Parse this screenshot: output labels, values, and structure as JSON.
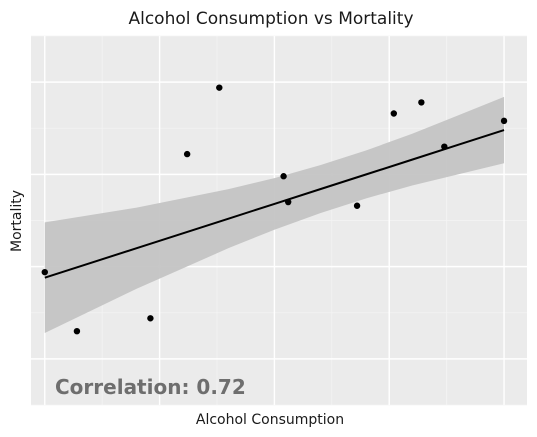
{
  "chart_data": {
    "type": "scatter",
    "title": "Alcohol Consumption vs Mortality",
    "xlabel": "Alcohol Consumption",
    "ylabel": "Mortality",
    "xlim": [
      -0.3,
      10.5
    ],
    "ylim": [
      0,
      10
    ],
    "grid": true,
    "tick_labels_visible": false,
    "points": [
      {
        "x": 0.0,
        "y": 3.6
      },
      {
        "x": 0.7,
        "y": 2.0
      },
      {
        "x": 2.3,
        "y": 2.35
      },
      {
        "x": 3.1,
        "y": 6.8
      },
      {
        "x": 3.8,
        "y": 8.6
      },
      {
        "x": 5.2,
        "y": 6.2
      },
      {
        "x": 5.3,
        "y": 5.5
      },
      {
        "x": 6.8,
        "y": 5.4
      },
      {
        "x": 7.6,
        "y": 7.9
      },
      {
        "x": 8.2,
        "y": 8.2
      },
      {
        "x": 8.7,
        "y": 7.0
      },
      {
        "x": 10.0,
        "y": 7.7
      }
    ],
    "regression": {
      "x": [
        0.0,
        1.0,
        2.0,
        3.0,
        4.0,
        5.0,
        6.0,
        7.0,
        8.0,
        9.0,
        10.0
      ],
      "fit": [
        3.45,
        3.85,
        4.25,
        4.65,
        5.05,
        5.45,
        5.85,
        6.25,
        6.65,
        7.05,
        7.45
      ],
      "lower": [
        1.95,
        2.55,
        3.15,
        3.7,
        4.25,
        4.75,
        5.2,
        5.6,
        5.95,
        6.25,
        6.55
      ],
      "upper": [
        4.95,
        5.15,
        5.35,
        5.6,
        5.85,
        6.15,
        6.5,
        6.9,
        7.35,
        7.85,
        8.35
      ]
    },
    "annotation": "Correlation: 0.72",
    "colors": {
      "panel": "#ebebeb",
      "grid_major": "#ffffff",
      "points": "#000000",
      "line": "#000000",
      "band": "#c4c4c4",
      "annotation": "#6e6e6e"
    }
  }
}
